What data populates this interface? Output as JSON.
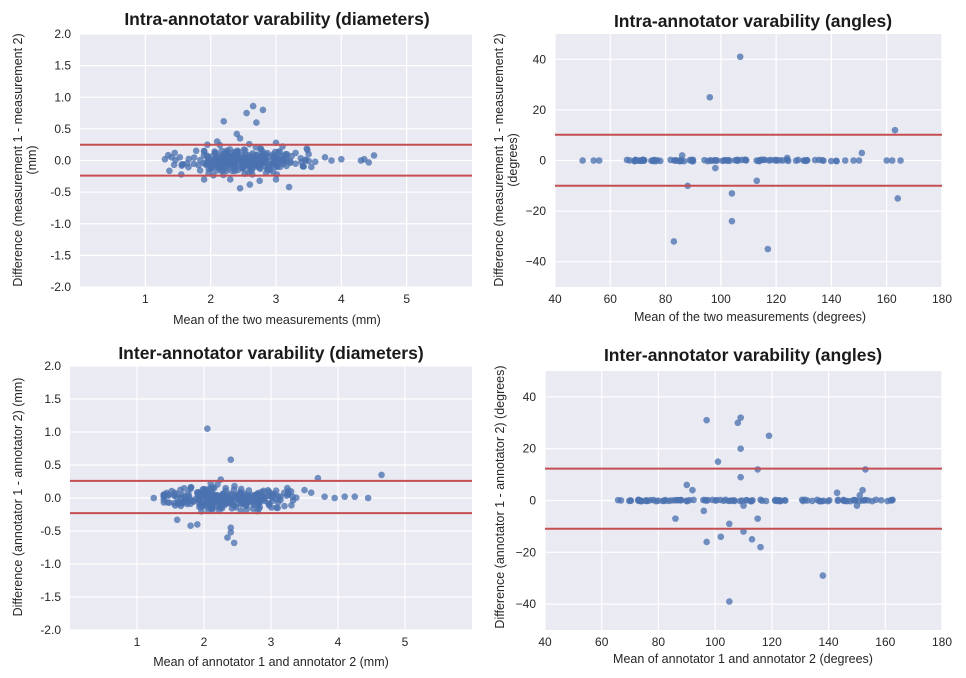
{
  "chart_data": [
    {
      "type": "scatter",
      "title": "Intra-annotator varability (diameters)",
      "xlabel": "Mean of the two measurements (mm)",
      "ylabel": "Difference (measurement 1 - measurement 2)\n(mm)",
      "xlim": [
        0,
        6
      ],
      "ylim": [
        -2.0,
        2.0
      ],
      "xticks": [
        1,
        2,
        3,
        4,
        5
      ],
      "xtick_labels": [
        "1",
        "2",
        "3",
        "4",
        "5"
      ],
      "yticks": [
        -2.0,
        -1.5,
        -1.0,
        -0.5,
        0.0,
        0.5,
        1.0,
        1.5,
        2.0
      ],
      "ytick_labels": [
        "-2.0",
        "-1.5",
        "-1.0",
        "-0.5",
        "0.0",
        "0.5",
        "1.0",
        "1.5",
        "2.0"
      ],
      "limits_of_agreement": [
        0.25,
        -0.24
      ],
      "grid": true,
      "cloud": {
        "count": 290,
        "x_center": 2.5,
        "x_sd": 0.42,
        "x_min": 1.35,
        "x_max": 3.6,
        "y_sd": 0.095
      },
      "points": [
        [
          2.65,
          0.86
        ],
        [
          2.8,
          0.8
        ],
        [
          2.55,
          0.75
        ],
        [
          2.2,
          0.62
        ],
        [
          2.7,
          0.6
        ],
        [
          2.4,
          0.42
        ],
        [
          2.45,
          0.35
        ],
        [
          3.0,
          0.28
        ],
        [
          2.1,
          0.3
        ],
        [
          1.95,
          0.25
        ],
        [
          3.1,
          0.22
        ],
        [
          2.3,
          -0.3
        ],
        [
          2.45,
          -0.44
        ],
        [
          2.6,
          -0.38
        ],
        [
          3.2,
          -0.42
        ],
        [
          1.9,
          -0.3
        ],
        [
          2.75,
          -0.32
        ],
        [
          3.0,
          -0.3
        ],
        [
          1.55,
          -0.22
        ],
        [
          1.45,
          0.12
        ],
        [
          1.4,
          0.05
        ],
        [
          1.3,
          0.02
        ],
        [
          3.5,
          0.1
        ],
        [
          3.75,
          0.05
        ],
        [
          3.85,
          0.0
        ],
        [
          4.0,
          0.02
        ],
        [
          3.3,
          -0.05
        ],
        [
          3.45,
          0.0
        ],
        [
          3.6,
          -0.02
        ],
        [
          3.15,
          0.0
        ],
        [
          3.3,
          0.12
        ],
        [
          4.35,
          0.02
        ],
        [
          4.42,
          -0.03
        ],
        [
          4.5,
          0.08
        ],
        [
          4.3,
          0.0
        ]
      ]
    },
    {
      "type": "scatter",
      "title": "Intra-annotator varability (angles)",
      "xlabel": "Mean of the two measurements (degrees)",
      "ylabel": "Difference (measurement 1 - measurement 2)\n(degrees)",
      "xlim": [
        40,
        180
      ],
      "ylim": [
        -50,
        50
      ],
      "xticks": [
        40,
        60,
        80,
        100,
        120,
        140,
        160,
        180
      ],
      "xtick_labels": [
        "40",
        "60",
        "80",
        "100",
        "120",
        "140",
        "160",
        "180"
      ],
      "yticks": [
        -40,
        -20,
        0,
        20,
        40
      ],
      "ytick_labels": [
        "−40",
        "−20",
        "0",
        "20",
        "40"
      ],
      "limits_of_agreement": [
        10.2,
        -10.0
      ],
      "grid": true,
      "row": {
        "count": 90,
        "x_min": 66,
        "x_max": 142
      },
      "points": [
        [
          50,
          0
        ],
        [
          54,
          0
        ],
        [
          56,
          0
        ],
        [
          107,
          41
        ],
        [
          96,
          25
        ],
        [
          163,
          12
        ],
        [
          151,
          3
        ],
        [
          86,
          2
        ],
        [
          98,
          -3
        ],
        [
          88,
          -10
        ],
        [
          113,
          -8
        ],
        [
          104,
          -13
        ],
        [
          104,
          -24
        ],
        [
          83,
          -32
        ],
        [
          117,
          -35
        ],
        [
          164,
          -15
        ],
        [
          145,
          0
        ],
        [
          148,
          0
        ],
        [
          150,
          0
        ],
        [
          160,
          0
        ],
        [
          162,
          0
        ],
        [
          165,
          0
        ],
        [
          124,
          1
        ],
        [
          130,
          0
        ]
      ]
    },
    {
      "type": "scatter",
      "title": "Inter-annotator varability (diameters)",
      "xlabel": "Mean of annotator 1 and annotator 2 (mm)",
      "ylabel": "Difference (annotator 1 - annotator 2)  (mm)",
      "xlim": [
        0,
        6
      ],
      "ylim": [
        -2.0,
        2.0
      ],
      "xticks": [
        1,
        2,
        3,
        4,
        5
      ],
      "xtick_labels": [
        "1",
        "2",
        "3",
        "4",
        "5"
      ],
      "yticks": [
        -2.0,
        -1.5,
        -1.0,
        -0.5,
        0.0,
        0.5,
        1.0,
        1.5,
        2.0
      ],
      "ytick_labels": [
        "-2.0",
        "-1.5",
        "-1.0",
        "-0.5",
        "0.0",
        "0.5",
        "1.0",
        "1.5",
        "2.0"
      ],
      "limits_of_agreement": [
        0.26,
        -0.23
      ],
      "grid": true,
      "cloud": {
        "count": 270,
        "x_center": 2.3,
        "x_sd": 0.45,
        "x_min": 1.4,
        "x_max": 3.7,
        "y_sd": 0.085
      },
      "points": [
        [
          2.05,
          1.05
        ],
        [
          2.4,
          0.58
        ],
        [
          4.65,
          0.35
        ],
        [
          3.7,
          0.3
        ],
        [
          2.25,
          0.28
        ],
        [
          2.4,
          -0.45
        ],
        [
          2.4,
          -0.52
        ],
        [
          2.45,
          -0.68
        ],
        [
          2.35,
          -0.6
        ],
        [
          1.8,
          -0.42
        ],
        [
          1.9,
          -0.4
        ],
        [
          1.6,
          -0.33
        ],
        [
          1.25,
          0.0
        ],
        [
          1.4,
          0.02
        ],
        [
          3.8,
          0.02
        ],
        [
          3.95,
          0.0
        ],
        [
          4.1,
          0.02
        ],
        [
          4.25,
          0.02
        ],
        [
          4.45,
          0.0
        ],
        [
          3.3,
          0.1
        ],
        [
          3.5,
          0.12
        ],
        [
          3.6,
          0.08
        ],
        [
          3.1,
          -0.15
        ],
        [
          2.8,
          -0.2
        ],
        [
          2.1,
          0.22
        ]
      ]
    },
    {
      "type": "scatter",
      "title": "Inter-annotator varability (angles)",
      "xlabel": "Mean of annotator 1 and annotator 2 (degrees)",
      "ylabel": "Difference (annotator 1 - annotator 2)  (degrees)",
      "xlim": [
        40,
        180
      ],
      "ylim": [
        -50,
        50
      ],
      "xticks": [
        40,
        60,
        80,
        100,
        120,
        140,
        160,
        180
      ],
      "xtick_labels": [
        "40",
        "60",
        "80",
        "100",
        "120",
        "140",
        "160",
        "180"
      ],
      "yticks": [
        -40,
        -20,
        0,
        20,
        40
      ],
      "ytick_labels": [
        "−40",
        "−20",
        "0",
        "20",
        "40"
      ],
      "limits_of_agreement": [
        12.3,
        -10.9
      ],
      "grid": true,
      "row": {
        "count": 105,
        "x_min": 65,
        "x_max": 163
      },
      "points": [
        [
          97,
          31
        ],
        [
          109,
          32
        ],
        [
          108,
          30
        ],
        [
          109,
          20
        ],
        [
          119,
          25
        ],
        [
          101,
          15
        ],
        [
          109,
          9
        ],
        [
          115,
          12
        ],
        [
          153,
          12
        ],
        [
          92,
          4
        ],
        [
          90,
          6
        ],
        [
          143,
          3
        ],
        [
          152,
          4
        ],
        [
          86,
          -7
        ],
        [
          96,
          -4
        ],
        [
          97,
          -16
        ],
        [
          102,
          -14
        ],
        [
          105,
          -9
        ],
        [
          110,
          -12
        ],
        [
          113,
          -15
        ],
        [
          116,
          -18
        ],
        [
          115,
          -7
        ],
        [
          110,
          -2
        ],
        [
          138,
          -29
        ],
        [
          105,
          -39
        ],
        [
          151,
          2
        ],
        [
          150,
          -2
        ],
        [
          152,
          0
        ]
      ]
    }
  ]
}
